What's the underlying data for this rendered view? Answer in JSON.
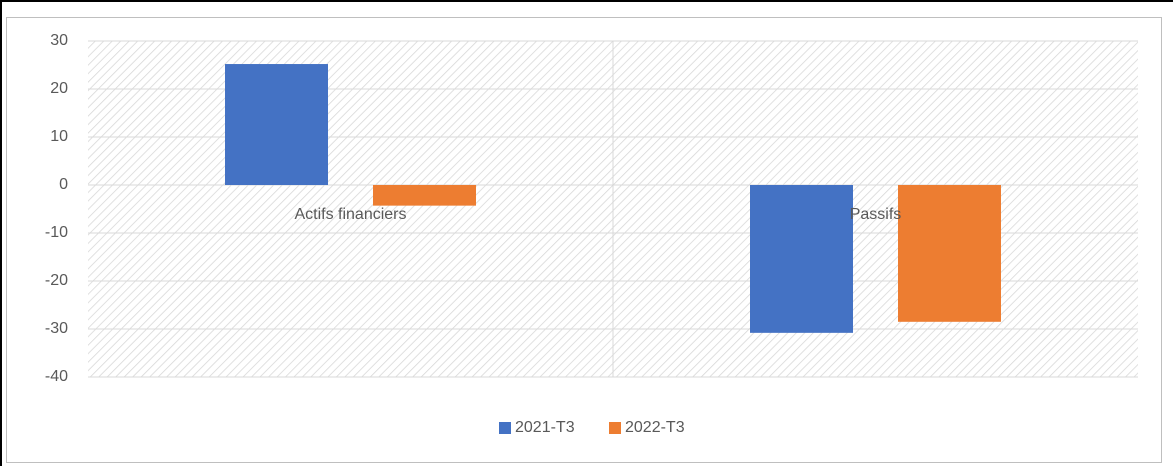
{
  "chart_data": {
    "type": "bar",
    "categories": [
      "Actifs financiers",
      "Passifs"
    ],
    "series": [
      {
        "name": "2021-T3",
        "color": "#4472c4",
        "values": [
          25.2,
          -30.8
        ]
      },
      {
        "name": "2022-T3",
        "color": "#ed7d31",
        "values": [
          -4.3,
          -28.5
        ]
      }
    ],
    "ylim": [
      -40,
      30
    ],
    "yticks": [
      -40,
      -30,
      -20,
      -10,
      0,
      10,
      20,
      30
    ],
    "grid": true,
    "legend": "bottom"
  }
}
